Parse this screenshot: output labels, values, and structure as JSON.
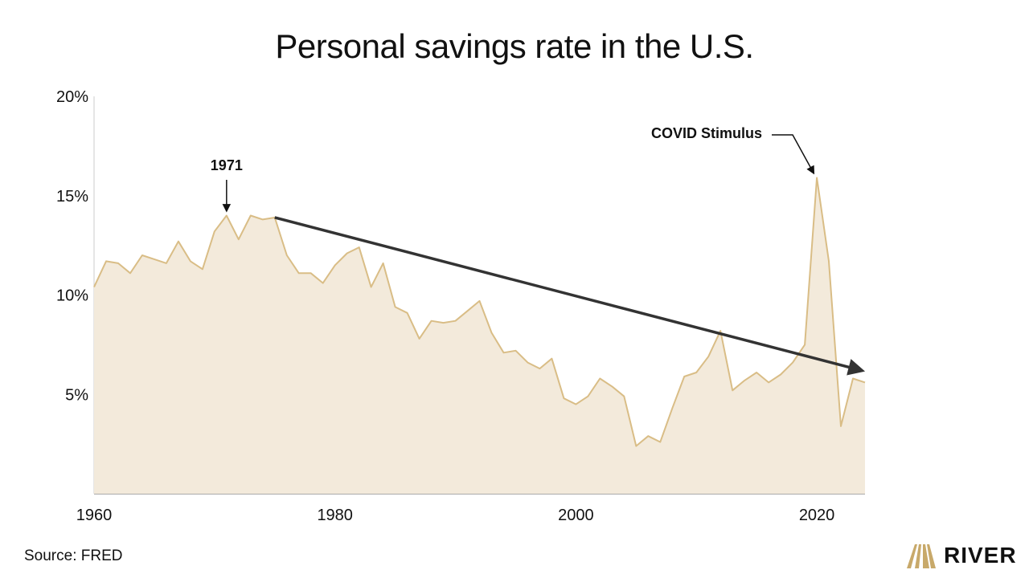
{
  "colors": {
    "area_fill": "#f3eadb",
    "area_line": "#d9bd86",
    "trend_arrow": "#333333",
    "axis": "#cccccc",
    "text": "#111111",
    "logo_gold": "#c8a96a"
  },
  "chart_data": {
    "type": "area",
    "title": "Personal savings rate in the U.S.",
    "xlabel": "",
    "ylabel": "",
    "xlim": [
      1960,
      2024
    ],
    "ylim": [
      0,
      20
    ],
    "x_ticks": [
      1960,
      1980,
      2000,
      2020
    ],
    "y_ticks": [
      5,
      10,
      15,
      20
    ],
    "y_tick_labels": [
      "5%",
      "10%",
      "15%",
      "20%"
    ],
    "grid": false,
    "x": [
      1960,
      1961,
      1962,
      1963,
      1964,
      1965,
      1966,
      1967,
      1968,
      1969,
      1970,
      1971,
      1972,
      1973,
      1974,
      1975,
      1976,
      1977,
      1978,
      1979,
      1980,
      1981,
      1982,
      1983,
      1984,
      1985,
      1986,
      1987,
      1988,
      1989,
      1990,
      1991,
      1992,
      1993,
      1994,
      1995,
      1996,
      1997,
      1998,
      1999,
      2000,
      2001,
      2002,
      2003,
      2004,
      2005,
      2006,
      2007,
      2008,
      2009,
      2010,
      2011,
      2012,
      2013,
      2014,
      2015,
      2016,
      2017,
      2018,
      2019,
      2020,
      2021,
      2022,
      2023,
      2024
    ],
    "values": [
      10.4,
      11.7,
      11.6,
      11.1,
      12.0,
      11.8,
      11.6,
      12.7,
      11.7,
      11.3,
      13.2,
      14.0,
      12.8,
      14.0,
      13.8,
      13.9,
      12.0,
      11.1,
      11.1,
      10.6,
      11.5,
      12.1,
      12.4,
      10.4,
      11.6,
      9.4,
      9.1,
      7.8,
      8.7,
      8.6,
      8.7,
      9.2,
      9.7,
      8.1,
      7.1,
      7.2,
      6.6,
      6.3,
      6.8,
      4.8,
      4.5,
      4.9,
      5.8,
      5.4,
      4.9,
      2.4,
      2.9,
      2.6,
      4.3,
      5.9,
      6.1,
      6.9,
      8.2,
      5.2,
      5.7,
      6.1,
      5.6,
      6.0,
      6.6,
      7.5,
      15.9,
      11.7,
      3.4,
      5.8,
      5.6
    ],
    "annotations": [
      {
        "label": "1971",
        "x": 1971,
        "y": 14.0
      },
      {
        "label": "COVID Stimulus",
        "x": 2020,
        "y": 15.9
      }
    ],
    "trend_line": {
      "from": [
        1975,
        13.9
      ],
      "to": [
        2024,
        6.2
      ]
    }
  },
  "footer": {
    "source": "Source: FRED",
    "logo_text": "RIVER"
  }
}
